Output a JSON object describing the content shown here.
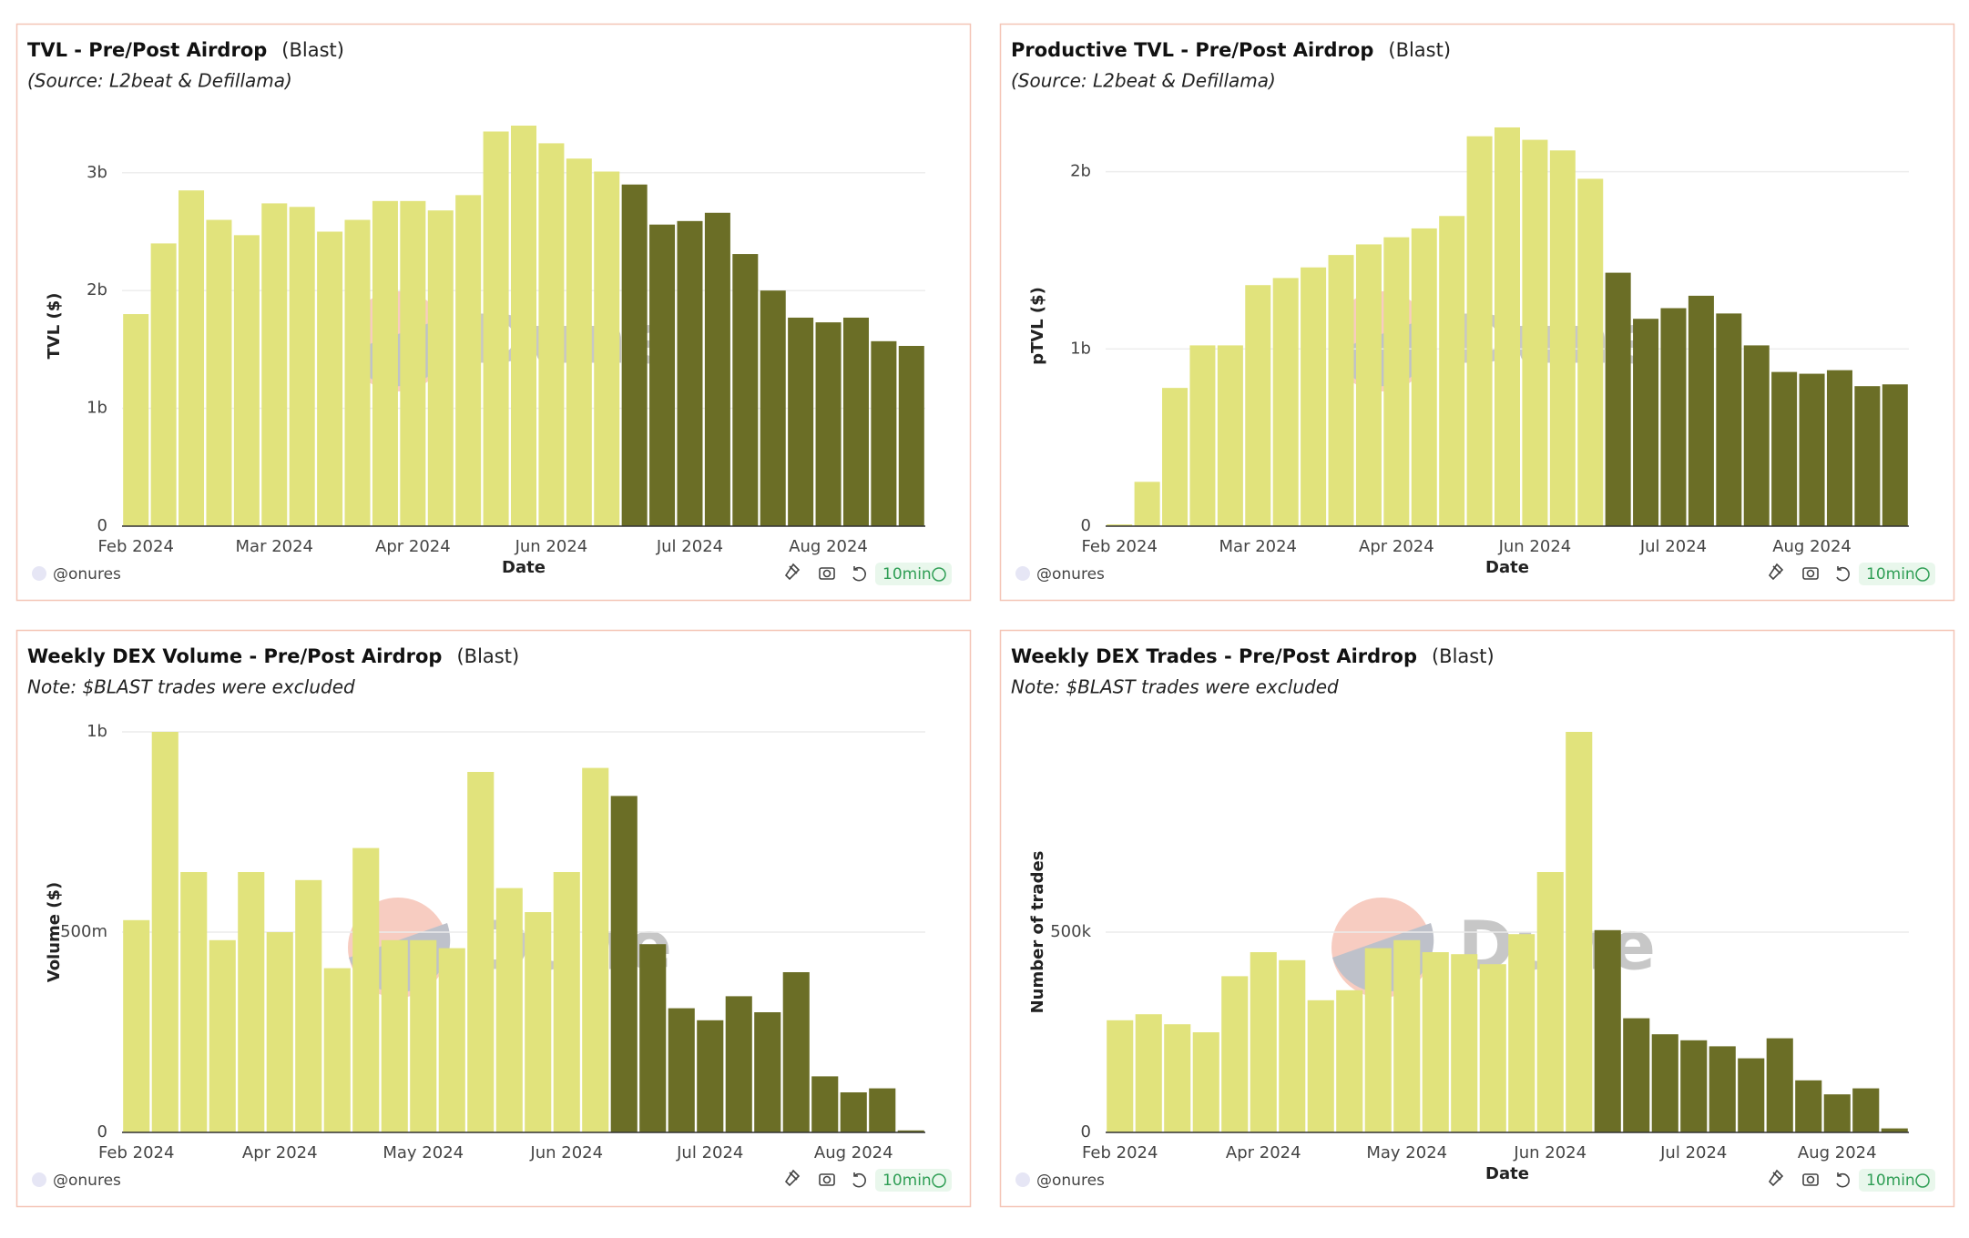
{
  "watermark": "Dune",
  "footer": {
    "author": "@onures",
    "refresh": "10min"
  },
  "chart_data": [
    {
      "type": "bar",
      "title": "TVL - Pre/Post Airdrop",
      "title_tag": "(Blast)",
      "subtitle": "(Source: L2beat & Defillama)",
      "x_label": "Date",
      "y_label": "TVL ($)",
      "categories": [
        "Feb 2024",
        null,
        null,
        null,
        null,
        "Mar 2024",
        null,
        null,
        null,
        null,
        "Apr 2024",
        null,
        null,
        null,
        null,
        "Jun 2024",
        null,
        null,
        null,
        null,
        "Jul 2024",
        null,
        null,
        null,
        null,
        "Aug 2024",
        null,
        null,
        null
      ],
      "series": [
        {
          "color": "#e1e37c",
          "values": [
            1800000000,
            2400000000,
            2850000000,
            2600000000,
            2470000000,
            2740000000,
            2710000000,
            2500000000,
            2600000000,
            2760000000,
            2760000000,
            2680000000,
            2810000000,
            3350000000,
            3400000000,
            3250000000,
            3120000000,
            3010000000,
            null,
            null,
            null,
            null,
            null,
            null,
            null,
            null,
            null,
            null,
            null
          ]
        },
        {
          "color": "#6b6e26",
          "values": [
            null,
            null,
            null,
            null,
            null,
            null,
            null,
            null,
            null,
            null,
            null,
            null,
            null,
            null,
            null,
            null,
            null,
            null,
            2900000000,
            2560000000,
            2590000000,
            2660000000,
            2310000000,
            2000000000,
            1770000000,
            1730000000,
            1770000000,
            1570000000,
            1530000000
          ]
        }
      ],
      "ylim": [
        0,
        3400000000
      ],
      "yticks": [
        0,
        {
          "value": 1000000000,
          "label": "1b"
        },
        {
          "value": 2000000000,
          "label": "2b"
        },
        {
          "value": 3000000000,
          "label": "3b"
        }
      ],
      "grid": true
    },
    {
      "type": "bar",
      "title": "Productive TVL - Pre/Post Airdrop",
      "title_tag": "(Blast)",
      "subtitle": "(Source: L2beat & Defillama)",
      "x_label": "Date",
      "y_label": "pTVL ($)",
      "categories": [
        "Feb 2024",
        null,
        null,
        null,
        null,
        "Mar 2024",
        null,
        null,
        null,
        null,
        "Apr 2024",
        null,
        null,
        null,
        null,
        "Jun 2024",
        null,
        null,
        null,
        null,
        "Jul 2024",
        null,
        null,
        null,
        null,
        "Aug 2024",
        null,
        null,
        null
      ],
      "series": [
        {
          "color": "#e1e37c",
          "values": [
            10000000,
            250000000,
            780000000,
            1020000000,
            1020000000,
            1360000000,
            1400000000,
            1460000000,
            1530000000,
            1590000000,
            1630000000,
            1680000000,
            1750000000,
            2200000000,
            2250000000,
            2180000000,
            2120000000,
            1960000000,
            null,
            null,
            null,
            null,
            null,
            null,
            null,
            null,
            null,
            null,
            null
          ]
        },
        {
          "color": "#6b6e26",
          "values": [
            null,
            null,
            null,
            null,
            null,
            null,
            null,
            null,
            null,
            null,
            null,
            null,
            null,
            null,
            null,
            null,
            null,
            null,
            1430000000,
            1170000000,
            1230000000,
            1300000000,
            1200000000,
            1020000000,
            870000000,
            860000000,
            880000000,
            790000000,
            800000000
          ]
        }
      ],
      "ylim": [
        0,
        2260000000
      ],
      "yticks": [
        0,
        {
          "value": 1000000000,
          "label": "1b"
        },
        {
          "value": 2000000000,
          "label": "2b"
        }
      ],
      "grid": true
    },
    {
      "type": "bar",
      "title": "Weekly DEX Volume - Pre/Post Airdrop",
      "title_tag": "(Blast)",
      "subtitle": "Note: $BLAST trades were excluded",
      "y_label": "Volume ($)",
      "categories": [
        "Feb 2024",
        null,
        null,
        null,
        null,
        "Apr 2024",
        null,
        null,
        null,
        null,
        "May 2024",
        null,
        null,
        null,
        null,
        "Jun 2024",
        null,
        null,
        null,
        null,
        "Jul 2024",
        null,
        null,
        null,
        null,
        "Aug 2024",
        null,
        null
      ],
      "series": [
        {
          "color": "#e1e37c",
          "values": [
            530000000,
            1000000000,
            650000000,
            480000000,
            650000000,
            500000000,
            630000000,
            410000000,
            710000000,
            480000000,
            480000000,
            460000000,
            900000000,
            610000000,
            550000000,
            650000000,
            910000000,
            null,
            null,
            null,
            null,
            null,
            null,
            null,
            null,
            null,
            null,
            null
          ]
        },
        {
          "color": "#6b6e26",
          "values": [
            null,
            null,
            null,
            null,
            null,
            null,
            null,
            null,
            null,
            null,
            null,
            null,
            null,
            null,
            null,
            null,
            null,
            840000000,
            470000000,
            310000000,
            280000000,
            340000000,
            300000000,
            400000000,
            140000000,
            100000000,
            110000000,
            5000000
          ]
        }
      ],
      "ylim": [
        0,
        1000000000
      ],
      "yticks": [
        0,
        {
          "value": 500000000,
          "label": "500m"
        },
        {
          "value": 1000000000,
          "label": "1b"
        }
      ],
      "grid": true
    },
    {
      "type": "bar",
      "title": "Weekly DEX Trades - Pre/Post Airdrop",
      "title_tag": "(Blast)",
      "subtitle": "Note: $BLAST trades were excluded",
      "x_label": "Date",
      "y_label": "Number of trades",
      "categories": [
        "Feb 2024",
        null,
        null,
        null,
        null,
        "Apr 2024",
        null,
        null,
        null,
        null,
        "May 2024",
        null,
        null,
        null,
        null,
        "Jun 2024",
        null,
        null,
        null,
        null,
        "Jul 2024",
        null,
        null,
        null,
        null,
        "Aug 2024",
        null,
        null
      ],
      "series": [
        {
          "color": "#e1e37c",
          "values": [
            280000,
            295000,
            270000,
            250000,
            390000,
            450000,
            430000,
            330000,
            355000,
            460000,
            480000,
            450000,
            445000,
            420000,
            495000,
            650000,
            1000000,
            null,
            null,
            null,
            null,
            null,
            null,
            null,
            null,
            null,
            null,
            null
          ]
        },
        {
          "color": "#6b6e26",
          "values": [
            null,
            null,
            null,
            null,
            null,
            null,
            null,
            null,
            null,
            null,
            null,
            null,
            null,
            null,
            null,
            null,
            null,
            505000,
            285000,
            245000,
            230000,
            215000,
            185000,
            235000,
            130000,
            95000,
            110000,
            10000
          ]
        }
      ],
      "ylim": [
        0,
        1000000
      ],
      "yticks": [
        0,
        {
          "value": 500000,
          "label": "500k"
        }
      ],
      "grid": true
    }
  ]
}
